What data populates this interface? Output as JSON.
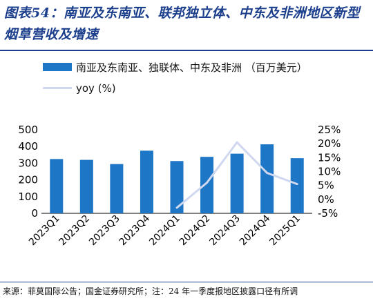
{
  "title": "图表54：南亚及东南亚、联邦独立体、中东及非洲地区新型烟草营收及增速",
  "source": "来源：菲莫国际公告；国金证券研究所；注：24 年一季度报地区披露口径有所调",
  "colors": {
    "bar": "#1e76c6",
    "line": "#cfd8ef",
    "title": "#1b3f8c"
  },
  "chart_data": {
    "type": "bar",
    "categories": [
      "2023Q1",
      "2023Q2",
      "2023Q3",
      "2023Q4",
      "2024Q1",
      "2024Q2",
      "2024Q3",
      "2024Q4",
      "2025Q1"
    ],
    "series": [
      {
        "name": "南亚及东南亚、独联体、中东及非洲 （百万美元）",
        "type": "bar",
        "axis": "left",
        "values": [
          325,
          320,
          295,
          375,
          313,
          338,
          357,
          413,
          330
        ]
      },
      {
        "name": "yoy (%)",
        "type": "line",
        "axis": "right",
        "values": [
          null,
          null,
          null,
          null,
          -3,
          6,
          20.5,
          9.5,
          5.5
        ]
      }
    ],
    "y_left": {
      "min": 0,
      "max": 500,
      "ticks": [
        "0",
        "100",
        "200",
        "300",
        "400",
        "500"
      ]
    },
    "y_right": {
      "min": -5,
      "max": 25,
      "ticks": [
        "-5%",
        "0%",
        "5%",
        "10%",
        "15%",
        "20%",
        "25%"
      ]
    },
    "legend_position": "top-left",
    "grid": false
  }
}
